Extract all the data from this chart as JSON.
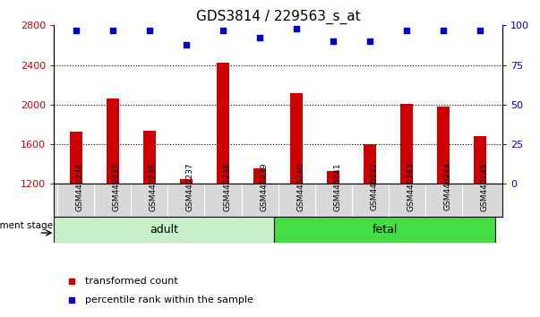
{
  "title": "GDS3814 / 229563_s_at",
  "samples": [
    "GSM440234",
    "GSM440235",
    "GSM440236",
    "GSM440237",
    "GSM440238",
    "GSM440239",
    "GSM440240",
    "GSM440241",
    "GSM440242",
    "GSM440243",
    "GSM440244",
    "GSM440245"
  ],
  "transformed_counts": [
    1730,
    2060,
    1740,
    1250,
    2420,
    1360,
    2120,
    1330,
    1600,
    2010,
    1980,
    1680
  ],
  "percentile_ranks": [
    97,
    97,
    97,
    88,
    97,
    92,
    98,
    90,
    90,
    97,
    97,
    97
  ],
  "ylim_left": [
    1200,
    2800
  ],
  "ylim_right": [
    0,
    100
  ],
  "yticks_left": [
    1200,
    1600,
    2000,
    2400,
    2800
  ],
  "yticks_right": [
    0,
    25,
    50,
    75,
    100
  ],
  "bar_color": "#cc0000",
  "scatter_color": "#0000cc",
  "adult_color": "#c8f0c8",
  "fetal_color": "#44dd44",
  "legend_bar_label": "transformed count",
  "legend_scatter_label": "percentile rank within the sample",
  "dev_stage_label": "development stage",
  "grid_ticks": [
    1600,
    2000,
    2400
  ],
  "adult_count": 6,
  "fetal_count": 6,
  "bar_width": 0.35
}
